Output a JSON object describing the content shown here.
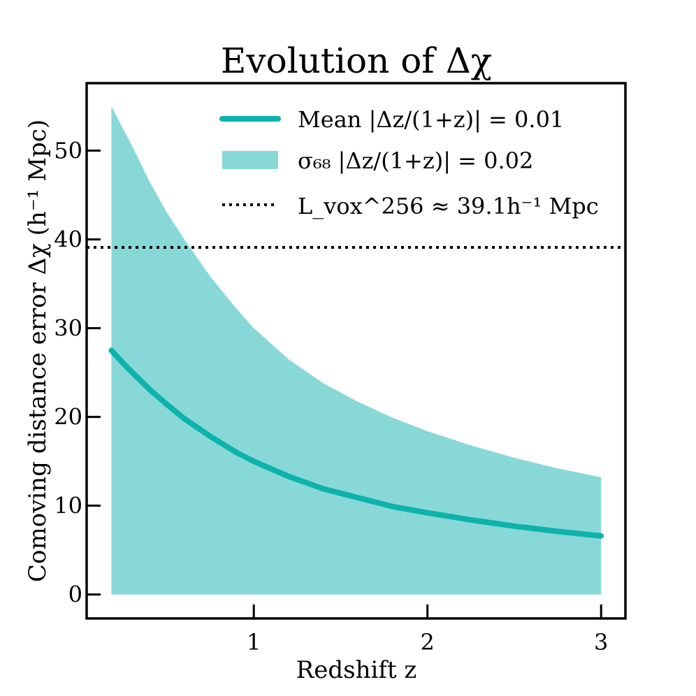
{
  "chart_data": {
    "type": "line",
    "title": "Evolution of Δχ",
    "xlabel": "Redshift z",
    "ylabel": "Comoving distance error Δχ (h⁻¹ Mpc)",
    "xlim": [
      0.0374,
      3.14
    ],
    "ylim": [
      -2.7,
      57.6
    ],
    "xticks": [
      1,
      2,
      3
    ],
    "yticks": [
      0,
      10,
      20,
      30,
      40,
      50
    ],
    "grid": false,
    "legend_position": "top-right",
    "colors": {
      "mean": "#0db3ab",
      "band": "#89d8d8",
      "hline": "#000000"
    },
    "series": [
      {
        "name": "Mean |Δz/(1+z)| = 0.01",
        "kind": "line",
        "x": [
          0.18,
          0.25,
          0.3,
          0.4,
          0.5,
          0.6,
          0.75,
          0.9,
          1.0,
          1.2,
          1.4,
          1.6,
          1.8,
          2.0,
          2.25,
          2.5,
          2.75,
          3.0
        ],
        "y": [
          27.5,
          26.0,
          25.0,
          23.1,
          21.4,
          19.8,
          17.8,
          16.0,
          15.0,
          13.3,
          11.9,
          10.9,
          9.9,
          9.2,
          8.4,
          7.7,
          7.1,
          6.6
        ]
      },
      {
        "name": "σ₆₈ |Δz/(1+z)| = 0.02",
        "kind": "band",
        "x": [
          0.18,
          0.3,
          0.4,
          0.5,
          0.6,
          0.75,
          0.9,
          1.0,
          1.2,
          1.4,
          1.6,
          1.8,
          2.0,
          2.25,
          2.5,
          2.75,
          3.0
        ],
        "lower": [
          0,
          0,
          0,
          0,
          0,
          0,
          0,
          0,
          0,
          0,
          0,
          0,
          0,
          0,
          0,
          0,
          0
        ],
        "upper": [
          55.0,
          50.5,
          46.5,
          43.0,
          40.0,
          35.8,
          32.2,
          30.0,
          26.5,
          23.8,
          21.7,
          19.9,
          18.4,
          16.8,
          15.4,
          14.2,
          13.2
        ]
      },
      {
        "name": "L_vox^256 ≈ 39.1h⁻¹ Mpc",
        "kind": "hline",
        "y": 39.1
      }
    ]
  }
}
